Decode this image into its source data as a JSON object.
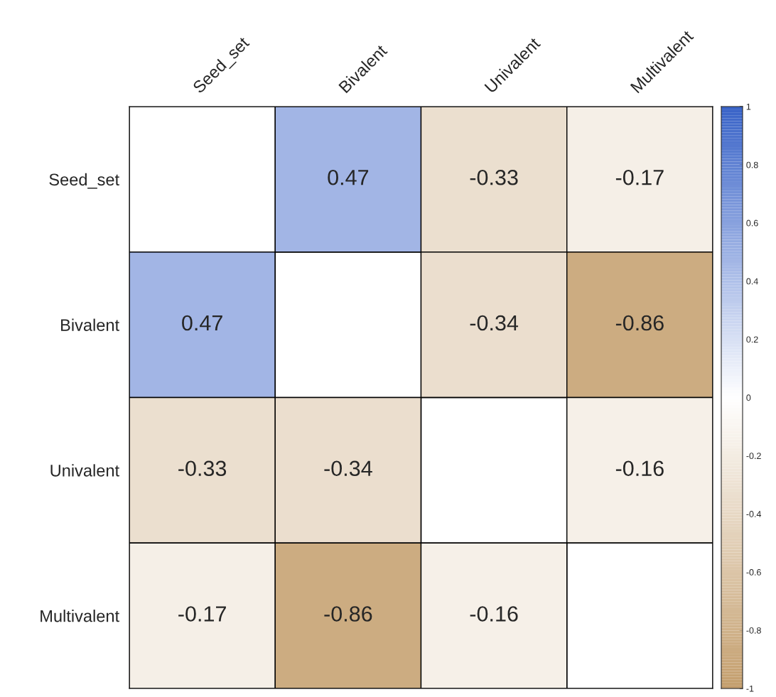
{
  "chart_data": {
    "type": "heatmap",
    "categories": [
      "Seed_set",
      "Bivalent",
      "Univalent",
      "Multivalent"
    ],
    "y_categories": [
      "Seed_set",
      "Bivalent",
      "Univalent",
      "Multivalent"
    ],
    "cells": [
      [
        null,
        0.47,
        -0.33,
        -0.17
      ],
      [
        0.47,
        null,
        -0.34,
        -0.86
      ],
      [
        -0.33,
        -0.34,
        null,
        -0.16
      ],
      [
        -0.17,
        -0.86,
        -0.16,
        null
      ]
    ],
    "data_labels": true,
    "clim": [
      -1,
      1
    ],
    "cticks": [
      -1,
      -0.8,
      -0.6,
      -0.4,
      -0.2,
      0,
      0.2,
      0.4,
      0.6,
      0.8,
      1
    ]
  }
}
